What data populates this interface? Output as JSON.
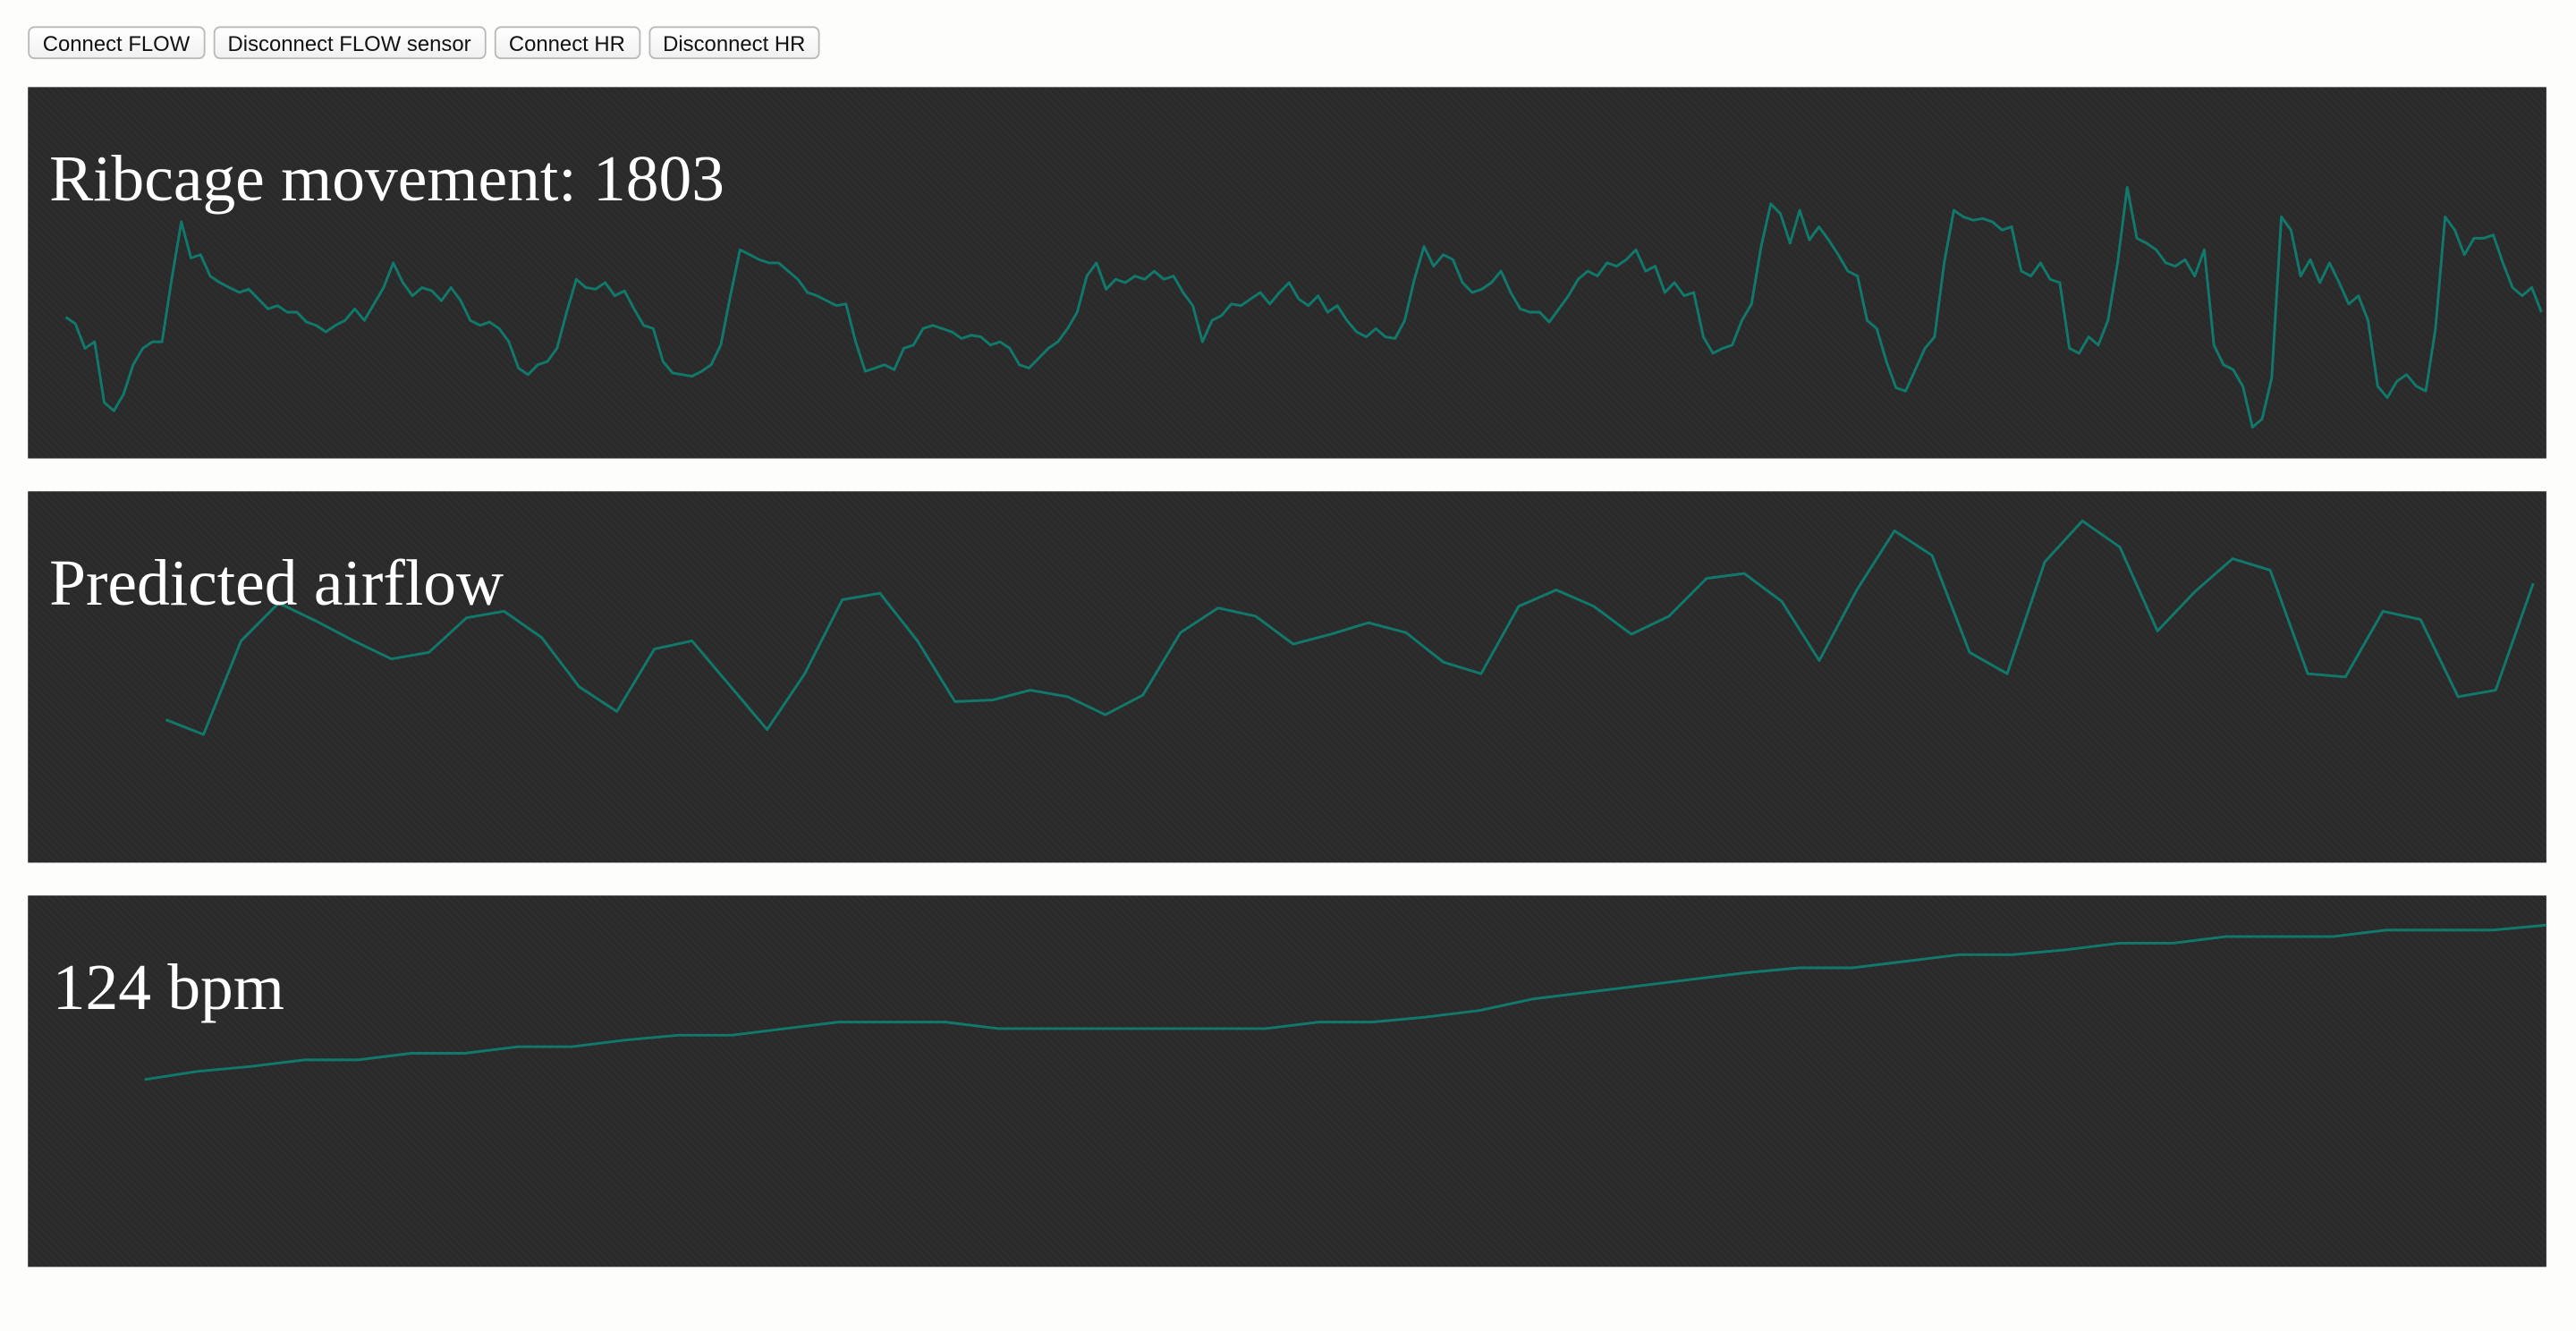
{
  "buttons": [
    "Connect FLOW",
    "Disconnect FLOW sensor",
    "Connect HR",
    "Disconnect HR"
  ],
  "chart_data": [
    {
      "type": "line",
      "title": "Ribcage movement: 1803",
      "color": "#11796b",
      "ylim": [
        0,
        226
      ],
      "values": [
        86,
        82,
        67,
        71,
        34,
        29,
        39,
        57,
        67,
        71,
        71,
        109,
        144,
        122,
        124,
        111,
        107,
        104,
        101,
        103,
        97,
        91,
        93,
        89,
        89,
        83,
        81,
        77,
        81,
        84,
        91,
        84,
        94,
        104,
        119,
        107,
        99,
        104,
        102,
        96,
        104,
        96,
        84,
        81,
        83,
        79,
        71,
        55,
        51,
        57,
        59,
        67,
        89,
        109,
        104,
        103,
        107,
        99,
        102,
        91,
        81,
        79,
        59,
        52,
        51,
        50,
        53,
        57,
        69,
        99,
        127,
        124,
        121,
        119,
        119,
        114,
        109,
        101,
        99,
        96,
        93,
        94,
        71,
        53,
        55,
        57,
        54,
        67,
        69,
        79,
        81,
        79,
        77,
        73,
        75,
        74,
        69,
        71,
        67,
        57,
        55,
        61,
        67,
        71,
        79,
        89,
        111,
        119,
        103,
        109,
        107,
        111,
        109,
        114,
        109,
        111,
        101,
        93,
        71,
        84,
        87,
        94,
        93,
        97,
        101,
        94,
        101,
        107,
        97,
        93,
        99,
        89,
        93,
        84,
        77,
        74,
        79,
        74,
        73,
        84,
        109,
        129,
        117,
        124,
        121,
        107,
        101,
        103,
        107,
        114,
        101,
        91,
        89,
        89,
        83,
        91,
        99,
        109,
        114,
        111,
        119,
        117,
        121,
        127,
        114,
        117,
        101,
        107,
        99,
        101,
        74,
        64,
        67,
        69,
        84,
        94,
        129,
        155,
        149,
        131,
        151,
        133,
        141,
        133,
        124,
        114,
        111,
        84,
        79,
        59,
        43,
        41,
        54,
        67,
        74,
        119,
        151,
        147,
        145,
        146,
        144,
        139,
        141,
        114,
        111,
        119,
        109,
        107,
        67,
        64,
        74,
        69,
        84,
        119,
        165,
        134,
        131,
        127,
        119,
        117,
        121,
        111,
        127,
        69,
        57,
        54,
        44,
        19,
        24,
        49,
        147,
        139,
        111,
        121,
        107,
        119,
        107,
        94,
        99,
        84,
        44,
        37,
        47,
        51,
        44,
        41,
        79,
        147,
        139,
        124,
        134,
        134,
        136,
        119,
        104,
        99,
        104,
        89
      ]
    },
    {
      "type": "line",
      "title": "Predicted airflow",
      "color": "#11796b",
      "ylim": [
        0,
        226
      ],
      "values": [
        87,
        78,
        135,
        158,
        147,
        135,
        124,
        128,
        149,
        153,
        137,
        107,
        92,
        130,
        135,
        108,
        81,
        115,
        160,
        164,
        135,
        98,
        99,
        105,
        101,
        90,
        102,
        140,
        155,
        150,
        133,
        139,
        146,
        140,
        122,
        115,
        156,
        166,
        156,
        139,
        150,
        173,
        176,
        159,
        123,
        166,
        202,
        187,
        128,
        115,
        183,
        208,
        192,
        141,
        165,
        185,
        178,
        115,
        113,
        153,
        148,
        101,
        105,
        170
      ]
    },
    {
      "type": "line",
      "title": "124 bpm",
      "color": "#11796b",
      "ylim": [
        0,
        226
      ],
      "values": [
        114,
        119,
        122,
        126,
        126,
        130,
        130,
        134,
        134,
        138,
        141,
        141,
        145,
        149,
        149,
        149,
        145,
        145,
        145,
        145,
        145,
        145,
        149,
        149,
        152,
        156,
        163,
        167,
        171,
        175,
        179,
        182,
        182,
        186,
        190,
        190,
        193,
        197,
        197,
        201,
        201,
        201,
        205,
        205,
        205,
        208
      ]
    }
  ]
}
